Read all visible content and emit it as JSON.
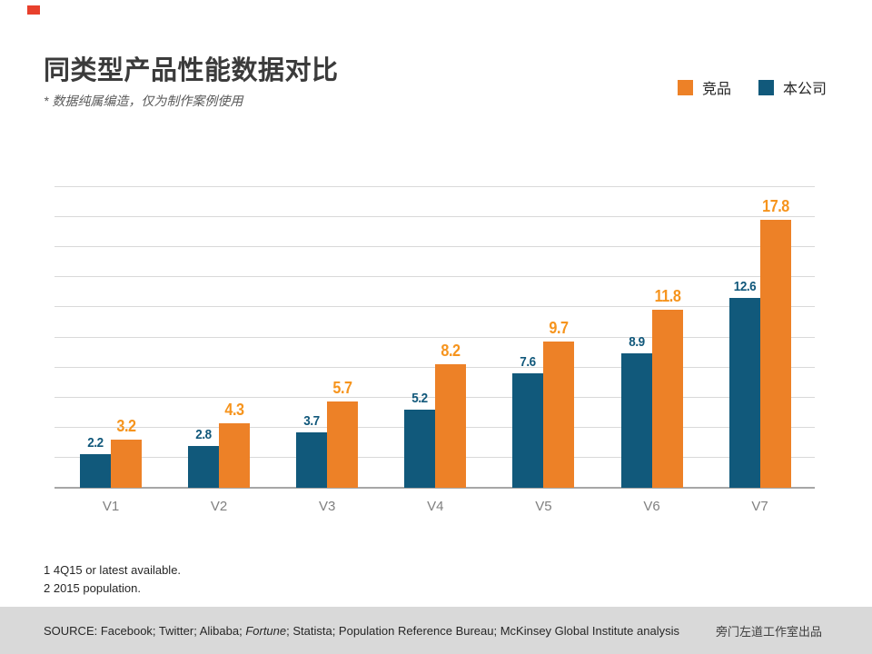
{
  "accent": {
    "corner_marker_color": "#e8402c"
  },
  "header": {
    "title": "同类型产品性能数据对比",
    "subtitle": "* 数据纯属编造，仅为制作案例使用"
  },
  "legend": [
    {
      "label": "竞品",
      "color": "#ed8127"
    },
    {
      "label": "本公司",
      "color": "#11597b"
    }
  ],
  "chart_data": {
    "type": "bar",
    "title": "同类型产品性能数据对比",
    "categories": [
      "V1",
      "V2",
      "V3",
      "V4",
      "V5",
      "V6",
      "V7"
    ],
    "series": [
      {
        "name": "本公司",
        "color": "#11597b",
        "label_color": "#11587b",
        "values": [
          2.2,
          2.8,
          3.7,
          5.2,
          7.6,
          8.9,
          12.6
        ]
      },
      {
        "name": "竞品",
        "color": "#ed8127",
        "label_color": "#f6941d",
        "values": [
          3.2,
          4.3,
          5.7,
          8.2,
          9.7,
          11.8,
          17.8
        ]
      }
    ],
    "xlabel": "",
    "ylabel": "",
    "ylim": [
      0,
      20
    ],
    "gridline_step": 2,
    "grid": true,
    "y_axis_labels_shown": false,
    "legend_position": "top-right",
    "gridline_color": "#d9d9d9",
    "baseline_color": "#a6a6a6"
  },
  "footnotes": [
    "1 4Q15 or latest available.",
    "2 2015 population."
  ],
  "source": {
    "segments": [
      {
        "text": "SOURCE: Facebook; Twitter; Alibaba; ",
        "italic": false
      },
      {
        "text": "Fortune",
        "italic": true
      },
      {
        "text": "; Statista; Population Reference Bureau; McKinsey Global Institute analysis",
        "italic": false
      }
    ],
    "credit": "旁门左道工作室出品"
  }
}
